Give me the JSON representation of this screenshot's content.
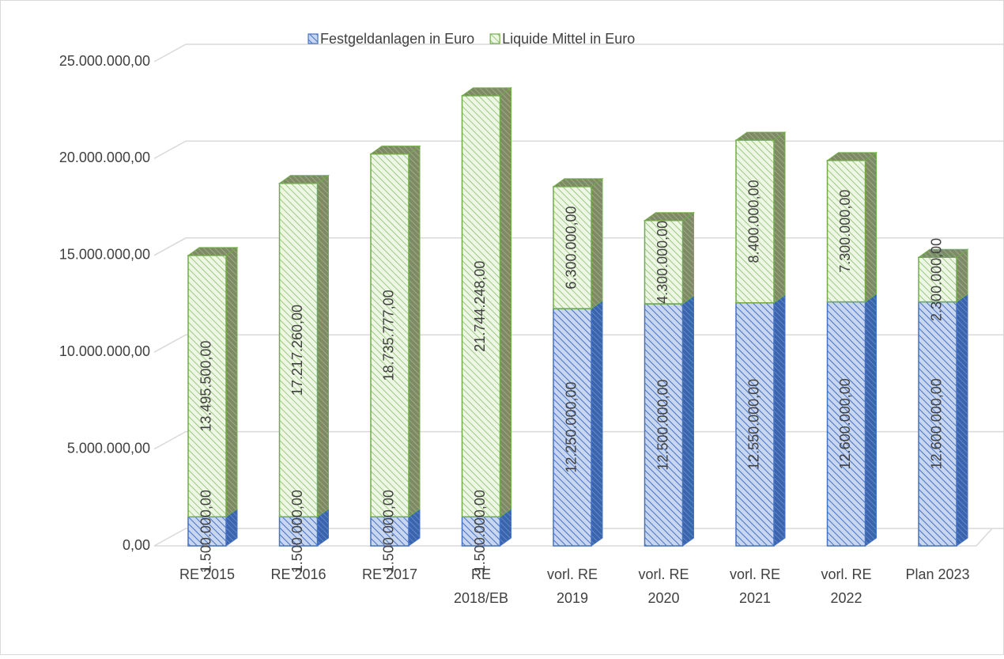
{
  "chart_data": {
    "type": "bar3d_stacked",
    "categories": [
      "RE 2015",
      "RE 2016",
      "RE 2017",
      "RE 2018/EB",
      "vorl. RE 2019",
      "vorl. RE 2020",
      "vorl. RE 2021",
      "vorl. RE 2022",
      "Plan 2023"
    ],
    "series": [
      {
        "name": "Festgeldanlagen in Euro",
        "color": "#4472c4",
        "values": [
          1500000,
          1500000,
          1500000,
          1500000,
          12250000,
          12500000,
          12550000,
          12600000,
          12600000
        ],
        "value_labels": [
          "1.500.000,00",
          "1.500.000,00",
          "1.500.000,00",
          "1.500.000,00",
          "12.250.000,00",
          "12.500.000,00",
          "12.550.000,00",
          "12.600.000,00",
          "12.600.000,00"
        ]
      },
      {
        "name": "Liquide Mittel in Euro",
        "color": "#70ad47",
        "values": [
          13495500,
          17217260,
          18735777,
          21744248,
          6300000,
          4300000,
          8400000,
          7300000,
          2300000
        ],
        "value_labels": [
          "13.495.500,00",
          "17.217.260,00",
          "18.735.777,00",
          "21.744.248,00",
          "6.300.000,00",
          "4.300.000,00",
          "8.400.000,00",
          "7.300.000,00",
          "2.300.000,00"
        ]
      }
    ],
    "ylim": [
      0,
      25000000
    ],
    "yticks": [
      {
        "value": 0,
        "label": "0,00"
      },
      {
        "value": 5000000,
        "label": "5.000.000,00"
      },
      {
        "value": 10000000,
        "label": "10.000.000,00"
      },
      {
        "value": 15000000,
        "label": "15.000.000,00"
      },
      {
        "value": 20000000,
        "label": "20.000.000,00"
      },
      {
        "value": 25000000,
        "label": "25.000.000,00"
      }
    ],
    "grid": true,
    "legend": "top"
  }
}
